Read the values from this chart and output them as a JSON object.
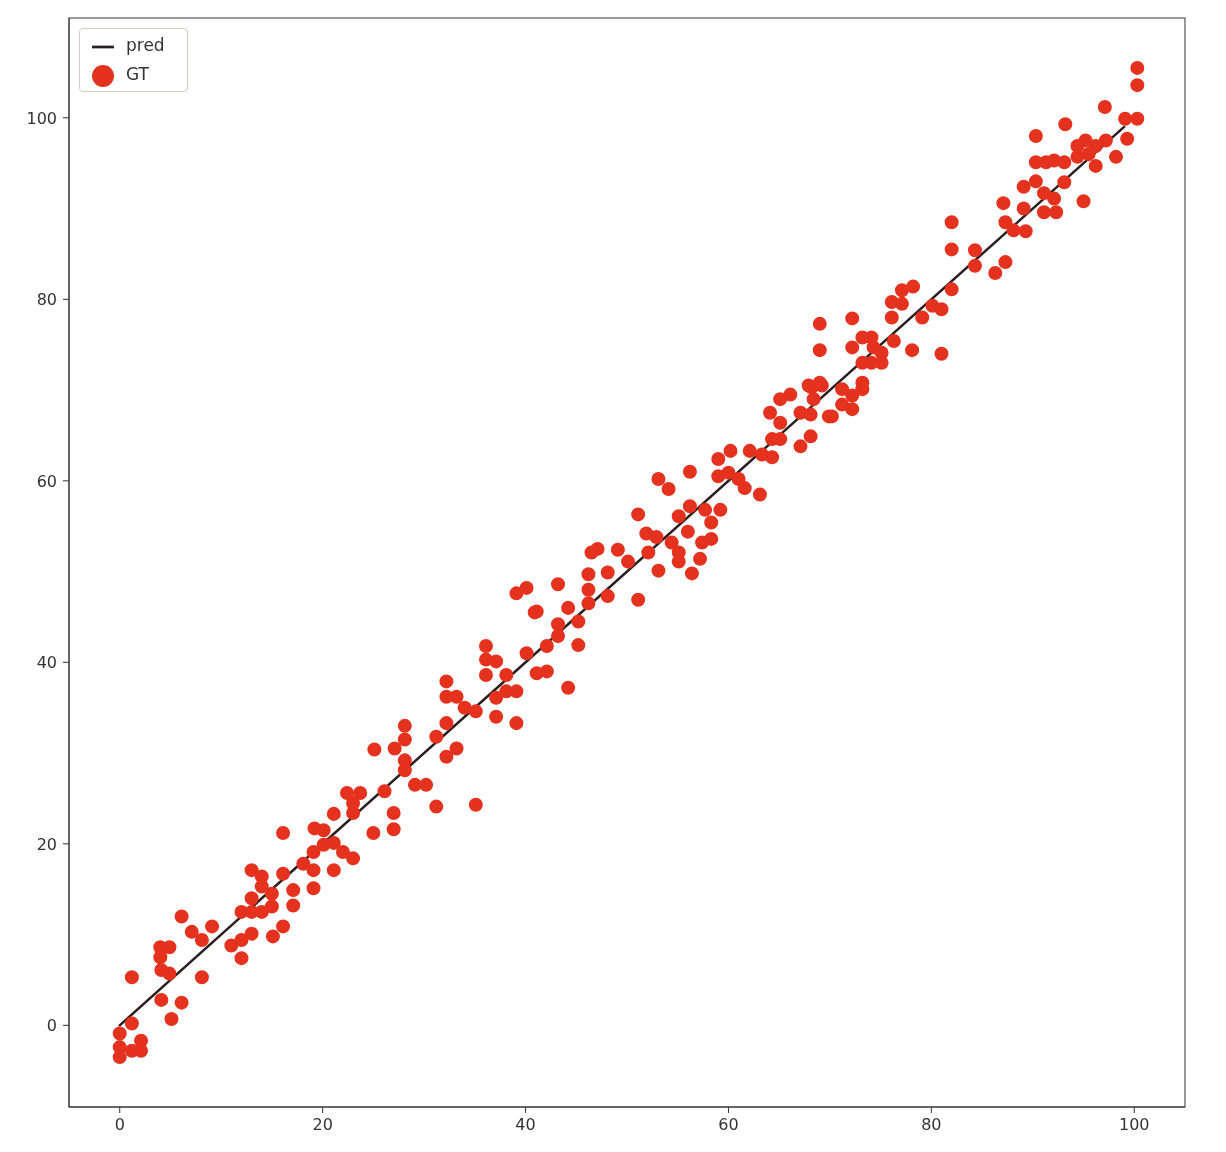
{
  "chart_data": {
    "type": "scatter",
    "xlim": [
      -5,
      105
    ],
    "ylim": [
      -9,
      111
    ],
    "xticks": [
      0,
      20,
      40,
      60,
      80,
      100
    ],
    "yticks": [
      0,
      20,
      40,
      60,
      80,
      100
    ],
    "legend": "top left",
    "marker": "circle",
    "series": [
      {
        "name": "pred",
        "type": "line",
        "marker": "none",
        "color": "#2d1e1e",
        "x": [
          0,
          99
        ],
        "values": [
          0,
          99
        ]
      },
      {
        "name": "GT",
        "color": "#e5321f",
        "x": [
          0,
          0,
          0,
          1.2,
          2.1,
          2.1,
          1.2,
          1.2,
          4.1,
          6.1,
          5.1,
          4.0,
          4.9,
          4.0,
          4.1,
          4.9,
          6.1,
          7.1,
          8.1,
          9.1,
          8.1,
          11.0,
          12.0,
          13.0,
          12.0,
          13.0,
          14.0,
          14.0,
          13.0,
          12.0,
          13.0,
          14.0,
          15.0,
          15.0,
          16.1,
          15.1,
          16.1,
          17.1,
          17.1,
          19.1,
          16.1,
          18.1,
          19.1,
          19.1,
          20.1,
          20.1,
          21.1,
          21.1,
          21.1,
          22.0,
          23.0,
          22.4,
          23.7,
          23.0,
          23.0,
          25.0,
          27.0,
          27.0,
          25.1,
          27.1,
          28.1,
          28.1,
          28.1,
          28.1,
          29.1,
          30.2,
          26.1,
          19.2,
          31.2,
          35.1,
          31.2,
          32.2,
          32.2,
          33.2,
          32.2,
          32.2,
          33.2,
          34.0,
          35.1,
          37.1,
          39.1,
          37.1,
          38.1,
          39.1,
          38.1,
          36.1,
          36.1,
          37.1,
          36.1,
          40.1,
          41.1,
          42.1,
          40.9,
          39.1,
          40.1,
          43.2,
          44.2,
          42.1,
          43.2,
          43.2,
          44.2,
          45.2,
          45.2,
          46.2,
          46.2,
          46.2,
          48.1,
          48.1,
          41.1,
          51.1,
          53.1,
          56.4,
          46.5,
          47.1,
          49.1,
          50.1,
          52.1,
          51.9,
          52.9,
          51.1,
          54.4,
          55.1,
          55.1,
          56.0,
          56.2,
          55.1,
          57.7,
          58.3,
          59.2,
          57.4,
          58.3,
          57.2,
          53.1,
          54.1,
          56.2,
          59.0,
          60.2,
          59.0,
          60.0,
          61.0,
          61.6,
          63.1,
          62.1,
          63.3,
          64.3,
          64.3,
          65.1,
          67.1,
          68.1,
          69.9,
          64.1,
          65.1,
          66.1,
          65.1,
          67.1,
          68.1,
          68.2,
          69.2,
          69.0,
          69.0,
          72.2,
          72.2,
          73.2,
          74.1,
          74.3,
          75.1,
          75.1,
          73.2,
          74.1,
          76.3,
          78.1,
          81.0,
          76.1,
          77.1,
          78.2,
          76.1,
          77.1,
          79.1,
          80.1,
          81.0,
          82.0,
          82.0,
          82.0,
          84.3,
          84.3,
          86.3,
          87.3,
          87.3,
          67.9,
          69.0,
          68.4,
          71.2,
          72.2,
          73.2,
          73.2,
          71.2,
          72.2,
          70.2,
          87.1,
          88.1,
          89.3,
          89.1,
          89.1,
          90.3,
          91.1,
          92.1,
          91.1,
          92.3,
          93.1,
          95.0,
          90.3,
          90.3,
          91.3,
          92.1,
          93.1,
          93.2,
          94.4,
          95.2,
          96.2,
          97.2,
          96.2,
          94.4,
          95.5,
          98.2,
          97.1,
          99.1,
          100.3,
          99.3,
          100.3,
          100.3
        ],
        "values": [
          -0.9,
          -2.4,
          -3.5,
          0.2,
          -1.7,
          -2.8,
          -2.8,
          5.3,
          2.8,
          2.5,
          0.7,
          8.6,
          8.6,
          7.5,
          6.1,
          5.7,
          12.0,
          10.3,
          9.4,
          10.9,
          5.3,
          8.8,
          9.4,
          10.1,
          7.4,
          17.1,
          16.4,
          15.3,
          14.0,
          12.5,
          12.5,
          12.5,
          13.1,
          14.5,
          10.9,
          9.8,
          16.7,
          14.9,
          13.2,
          15.1,
          21.2,
          17.8,
          17.1,
          19.1,
          19.9,
          21.5,
          23.3,
          20.1,
          17.1,
          19.1,
          18.4,
          25.6,
          25.6,
          24.5,
          23.4,
          21.2,
          23.4,
          21.6,
          30.4,
          30.5,
          33.0,
          31.5,
          29.2,
          28.1,
          26.5,
          26.5,
          25.8,
          21.7,
          24.1,
          24.3,
          31.8,
          33.3,
          29.6,
          30.5,
          37.9,
          36.2,
          36.2,
          35.0,
          34.6,
          34.0,
          33.3,
          36.1,
          36.8,
          36.8,
          38.6,
          41.8,
          40.3,
          40.1,
          38.6,
          41.0,
          38.8,
          39.0,
          45.5,
          47.6,
          48.2,
          48.6,
          37.2,
          41.8,
          44.2,
          42.9,
          46.0,
          44.5,
          41.9,
          49.7,
          48.0,
          46.5,
          49.9,
          47.3,
          45.6,
          46.9,
          50.1,
          49.8,
          52.1,
          52.5,
          52.4,
          51.1,
          52.1,
          54.2,
          53.8,
          56.3,
          53.2,
          52.1,
          51.1,
          54.4,
          57.2,
          56.1,
          56.8,
          55.4,
          56.8,
          53.2,
          53.6,
          51.4,
          60.2,
          59.1,
          61.0,
          62.4,
          63.3,
          60.5,
          60.9,
          60.2,
          59.2,
          58.5,
          63.3,
          62.9,
          62.6,
          64.6,
          64.6,
          63.8,
          64.9,
          67.1,
          67.5,
          69.0,
          69.5,
          66.4,
          67.5,
          67.3,
          70.3,
          70.5,
          77.3,
          74.4,
          77.9,
          74.7,
          75.8,
          75.8,
          74.7,
          74.1,
          73.0,
          73.0,
          73.0,
          75.4,
          74.4,
          74.0,
          79.7,
          81.0,
          81.4,
          78.0,
          79.5,
          78.0,
          79.3,
          78.9,
          81.1,
          85.5,
          88.5,
          85.4,
          83.7,
          82.9,
          84.1,
          88.5,
          70.5,
          70.8,
          69.0,
          70.1,
          69.4,
          70.8,
          70.1,
          68.4,
          67.9,
          67.1,
          90.6,
          87.6,
          87.5,
          90.0,
          92.4,
          93.0,
          91.7,
          91.1,
          89.6,
          89.6,
          92.9,
          90.8,
          98.0,
          95.1,
          95.1,
          95.3,
          95.1,
          99.3,
          96.9,
          97.5,
          96.9,
          97.5,
          94.7,
          95.7,
          96.0,
          95.7,
          101.2,
          99.9,
          99.9,
          97.7,
          105.5,
          103.6
        ]
      }
    ]
  }
}
